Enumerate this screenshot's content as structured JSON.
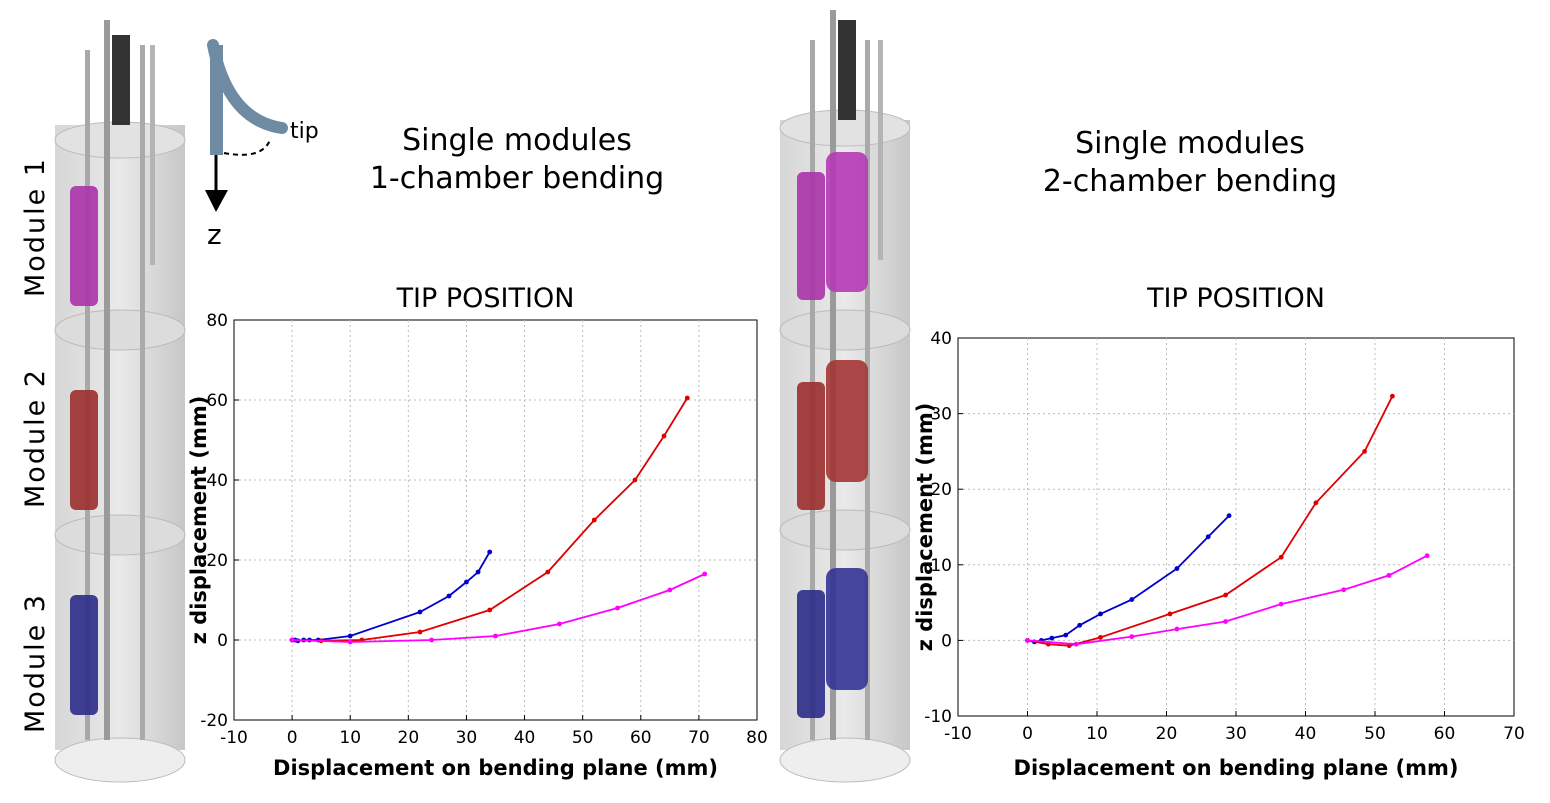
{
  "headings": {
    "left": {
      "line1": "Single modules",
      "line2": "1-chamber bending"
    },
    "right": {
      "line1": "Single modules",
      "line2": "2-chamber bending"
    }
  },
  "inset": {
    "tip_label": "tip",
    "axis_label": "z"
  },
  "modules": {
    "m1": "Module 1",
    "m2": "Module 2",
    "m3": "Module 3"
  },
  "colors": {
    "blue": "#0000cc",
    "red": "#e00000",
    "magenta": "#ff00ff",
    "grid": "#bbbbbb"
  },
  "chart_data": [
    {
      "type": "line",
      "title": "TIP POSITION",
      "xlabel": "Displacement on bending plane (mm)",
      "ylabel": "z displacement  (mm)",
      "xlim": [
        -10,
        80
      ],
      "ylim": [
        -20,
        80
      ],
      "xticks": [
        "-10",
        "0",
        "10",
        "20",
        "30",
        "40",
        "50",
        "60",
        "70",
        "80"
      ],
      "yticks": [
        "-20",
        "0",
        "20",
        "40",
        "60",
        "80"
      ],
      "grid": true,
      "series": [
        {
          "color": "#0000cc",
          "x": [
            0,
            0.5,
            1,
            2,
            3,
            4.5,
            10,
            22,
            27,
            30,
            32,
            34
          ],
          "y": [
            0,
            0,
            -0.2,
            0,
            0,
            0,
            1,
            7,
            11,
            14.5,
            17,
            22
          ]
        },
        {
          "color": "#e00000",
          "x": [
            0,
            5,
            12,
            22,
            34,
            44,
            52,
            59,
            64,
            68
          ],
          "y": [
            0,
            -0.2,
            0,
            2,
            7.5,
            17,
            30,
            40,
            51,
            60.5
          ]
        },
        {
          "color": "#ff00ff",
          "x": [
            0,
            10,
            24,
            35,
            46,
            56,
            65,
            71
          ],
          "y": [
            0,
            -0.5,
            0,
            1,
            4,
            8,
            12.5,
            16.5
          ]
        }
      ]
    },
    {
      "type": "line",
      "title": "TIP POSITION",
      "xlabel": "Displacement on bending plane (mm)",
      "ylabel": "z displacement  (mm)",
      "xlim": [
        -10,
        70
      ],
      "ylim": [
        -10,
        40
      ],
      "xticks": [
        "-10",
        "0",
        "10",
        "20",
        "30",
        "40",
        "50",
        "60",
        "70"
      ],
      "yticks": [
        "-10",
        "0",
        "10",
        "20",
        "30",
        "40"
      ],
      "grid": true,
      "series": [
        {
          "color": "#0000cc",
          "x": [
            0,
            1,
            2,
            3.5,
            5.5,
            7.5,
            10.5,
            15,
            21.5,
            26,
            29
          ],
          "y": [
            0,
            -0.2,
            0,
            0.3,
            0.7,
            2,
            3.5,
            5.4,
            9.5,
            13.7,
            16.5
          ]
        },
        {
          "color": "#e00000",
          "x": [
            0,
            3,
            6,
            10.5,
            20.5,
            28.5,
            36.5,
            41.5,
            48.5,
            52.5
          ],
          "y": [
            0,
            -0.5,
            -0.7,
            0.4,
            3.5,
            6,
            11,
            18.2,
            25,
            32.3
          ]
        },
        {
          "color": "#ff00ff",
          "x": [
            0,
            7,
            15,
            21.5,
            28.5,
            36.5,
            45.5,
            52,
            57.5
          ],
          "y": [
            0,
            -0.5,
            0.5,
            1.5,
            2.5,
            4.8,
            6.7,
            8.6,
            11.2
          ]
        }
      ]
    }
  ]
}
